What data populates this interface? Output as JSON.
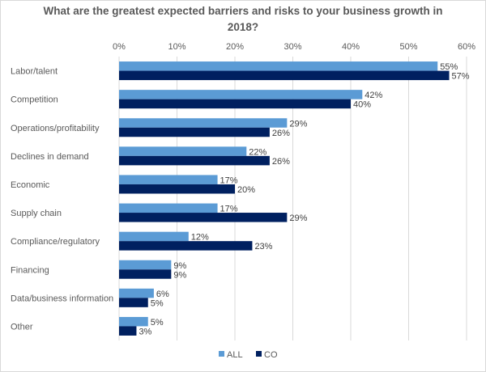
{
  "chart_data": {
    "type": "bar",
    "orientation": "horizontal",
    "title_line1": "What are the greatest expected barriers and risks to your business growth in",
    "title_line2": "2018?",
    "xlabel": "",
    "ylabel": "",
    "xlim": [
      0,
      60
    ],
    "x_ticks": [
      "0%",
      "10%",
      "20%",
      "30%",
      "40%",
      "50%",
      "60%"
    ],
    "x_tick_values": [
      0,
      10,
      20,
      30,
      40,
      50,
      60
    ],
    "grid": true,
    "legend_position": "bottom",
    "categories": [
      "Labor/talent",
      "Competition",
      "Operations/profitability",
      "Declines in demand",
      "Economic",
      "Supply chain",
      "Compliance/regulatory",
      "Financing",
      "Data/business information",
      "Other"
    ],
    "series": [
      {
        "name": "ALL",
        "color": "#5b9bd5",
        "values": [
          55,
          42,
          29,
          22,
          17,
          17,
          12,
          9,
          6,
          5
        ]
      },
      {
        "name": "CO",
        "color": "#002060",
        "values": [
          57,
          40,
          26,
          26,
          20,
          29,
          23,
          9,
          5,
          3
        ]
      }
    ],
    "value_suffix": "%"
  }
}
